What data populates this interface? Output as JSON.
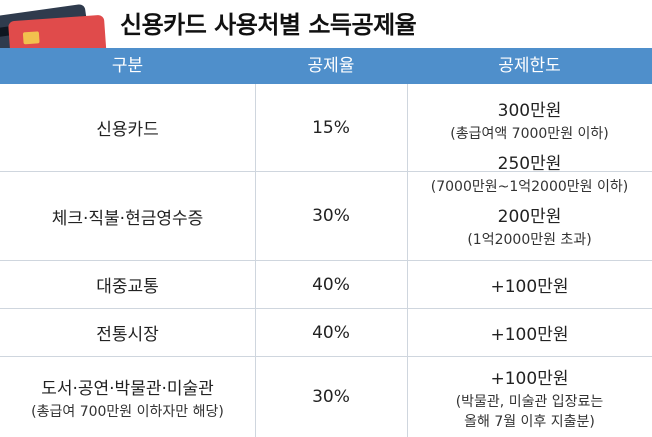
{
  "title": "신용카드 사용처별 소득공제율",
  "headers": [
    "구분",
    "공제율",
    "공제한도"
  ],
  "rows": [
    {
      "category": "신용카드",
      "rate": "15%"
    },
    {
      "category": "체크·직불·현금영수증",
      "rate": "30%"
    },
    {
      "category": "대중교통",
      "rate": "40%",
      "limit": "+100만원"
    },
    {
      "category": "전통시장",
      "rate": "40%",
      "limit": "+100만원"
    },
    {
      "category": "도서·공연·박물관·미술관",
      "category_note": "(총급여 700만원 이하자만 해당)",
      "rate": "30%",
      "limit": "+100만원",
      "limit_note_1": "(박물관, 미술관 입장료는",
      "limit_note_2": "올해 7월 이후 지출분)"
    }
  ],
  "limits_merged": [
    {
      "amount": "300만원",
      "note": "(총급여액 7000만원 이하)"
    },
    {
      "amount": "250만원",
      "note": "(7000만원~1억2000만원 이하)"
    },
    {
      "amount": "200만원",
      "note": "(1억2000만원 초과)"
    }
  ]
}
